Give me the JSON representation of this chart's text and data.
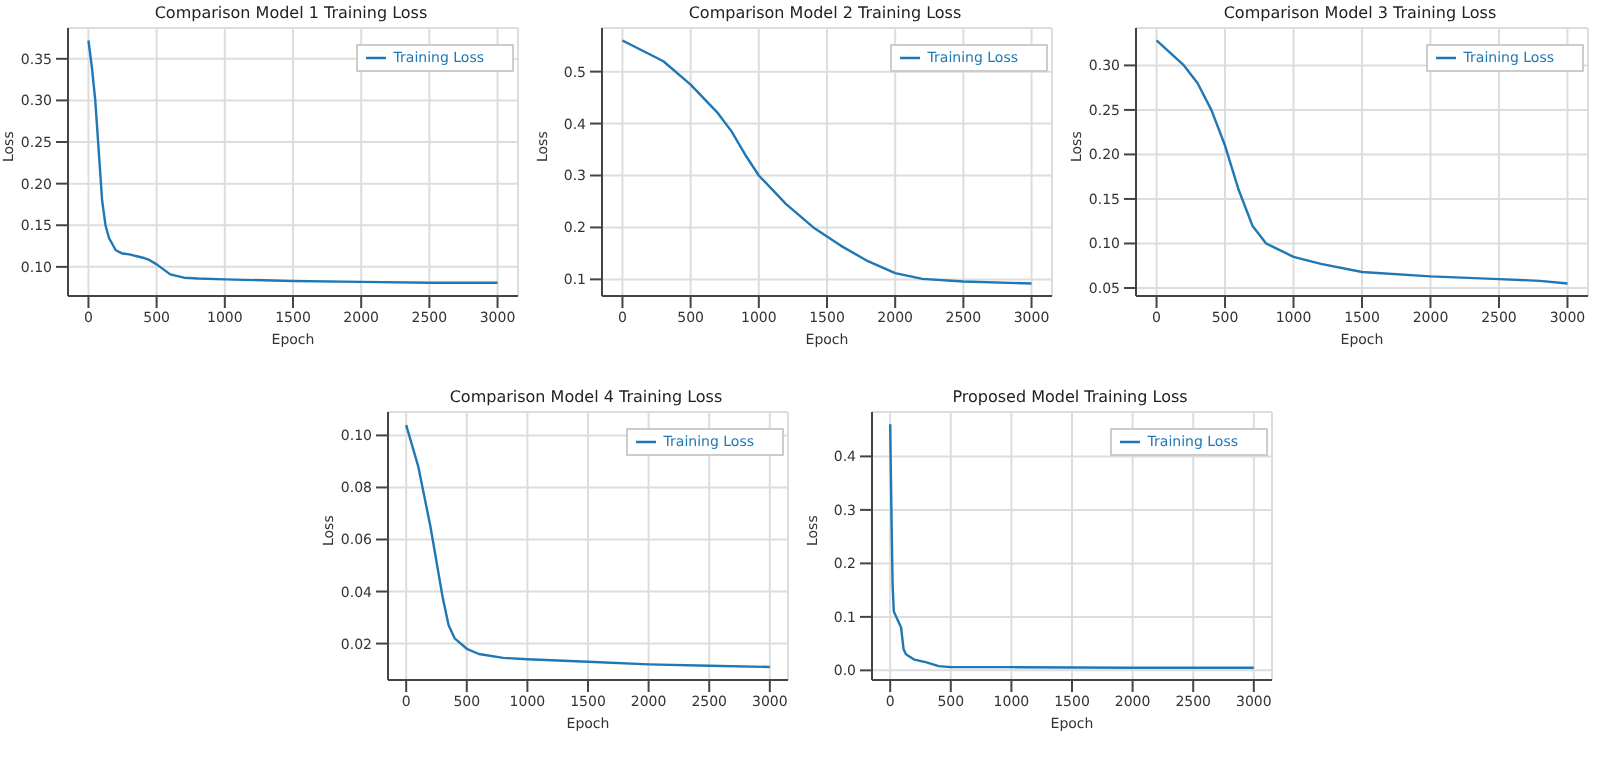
{
  "chart_data": [
    {
      "type": "line",
      "title": "Comparison Model 1 Training Loss",
      "xlabel": "Epoch",
      "ylabel": "Loss",
      "xlim": [
        -150,
        3150
      ],
      "ylim": [
        0.065,
        0.387
      ],
      "xticks": [
        0,
        500,
        1000,
        1500,
        2000,
        2500,
        3000
      ],
      "yticks": [
        {
          "value": 0.1,
          "label": "0.10"
        },
        0.15,
        {
          "value": 0.2,
          "label": "0.20"
        },
        0.25,
        {
          "value": 0.3,
          "label": "0.30"
        },
        0.35
      ],
      "grid": true,
      "legend": "top right",
      "marker": "none",
      "line_style": "solid",
      "series": [
        {
          "name": "Training Loss",
          "color": "#1f77b4",
          "x": [
            0,
            25,
            50,
            75,
            100,
            125,
            150,
            200,
            250,
            300,
            400,
            450,
            500,
            550,
            600,
            700,
            800,
            1000,
            1500,
            2000,
            2500,
            3000
          ],
          "values": [
            0.372,
            0.34,
            0.3,
            0.24,
            0.18,
            0.15,
            0.135,
            0.12,
            0.116,
            0.115,
            0.111,
            0.108,
            0.103,
            0.097,
            0.091,
            0.087,
            0.086,
            0.085,
            0.083,
            0.082,
            0.081,
            0.081
          ]
        }
      ]
    },
    {
      "type": "line",
      "title": "Comparison Model 2 Training Loss",
      "xlabel": "Epoch",
      "ylabel": "Loss",
      "xlim": [
        -150,
        3150
      ],
      "ylim": [
        0.068,
        0.584
      ],
      "xticks": [
        0,
        500,
        1000,
        1500,
        2000,
        2500,
        3000
      ],
      "yticks": [
        0.1,
        0.2,
        0.3,
        0.4,
        0.5
      ],
      "grid": true,
      "legend": "top right",
      "marker": "none",
      "line_style": "solid",
      "series": [
        {
          "name": "Training Loss",
          "color": "#1f77b4",
          "x": [
            0,
            300,
            500,
            700,
            800,
            900,
            1000,
            1200,
            1400,
            1600,
            1800,
            2000,
            2200,
            2500,
            3000
          ],
          "values": [
            0.56,
            0.52,
            0.475,
            0.42,
            0.385,
            0.34,
            0.3,
            0.245,
            0.2,
            0.165,
            0.135,
            0.112,
            0.101,
            0.096,
            0.092
          ]
        }
      ]
    },
    {
      "type": "line",
      "title": "Comparison Model 3 Training Loss",
      "xlabel": "Epoch",
      "ylabel": "Loss",
      "xlim": [
        -150,
        3150
      ],
      "ylim": [
        0.041,
        0.342
      ],
      "xticks": [
        0,
        500,
        1000,
        1500,
        2000,
        2500,
        3000
      ],
      "yticks": [
        0.05,
        {
          "value": 0.1,
          "label": "0.10"
        },
        0.15,
        {
          "value": 0.2,
          "label": "0.20"
        },
        0.25,
        {
          "value": 0.3,
          "label": "0.30"
        }
      ],
      "grid": true,
      "legend": "top right",
      "marker": "none",
      "line_style": "solid",
      "series": [
        {
          "name": "Training Loss",
          "color": "#1f77b4",
          "x": [
            0,
            200,
            300,
            400,
            500,
            600,
            700,
            800,
            1000,
            1200,
            1500,
            2000,
            2500,
            2800,
            3000
          ],
          "values": [
            0.328,
            0.3,
            0.28,
            0.25,
            0.21,
            0.16,
            0.12,
            0.1,
            0.085,
            0.077,
            0.068,
            0.063,
            0.06,
            0.058,
            0.055
          ]
        }
      ]
    },
    {
      "type": "line",
      "title": "Comparison Model 4 Training Loss",
      "xlabel": "Epoch",
      "ylabel": "Loss",
      "xlim": [
        -150,
        3150
      ],
      "ylim": [
        0.006,
        0.109
      ],
      "xticks": [
        0,
        500,
        1000,
        1500,
        2000,
        2500,
        3000
      ],
      "yticks": [
        0.02,
        0.04,
        0.06,
        0.08,
        {
          "value": 0.1,
          "label": "0.10"
        }
      ],
      "grid": true,
      "legend": "top right",
      "marker": "none",
      "line_style": "solid",
      "series": [
        {
          "name": "Training Loss",
          "color": "#1f77b4",
          "x": [
            0,
            100,
            200,
            300,
            350,
            400,
            500,
            600,
            800,
            1000,
            1500,
            2000,
            2500,
            3000
          ],
          "values": [
            0.104,
            0.088,
            0.065,
            0.038,
            0.027,
            0.022,
            0.018,
            0.016,
            0.0145,
            0.014,
            0.013,
            0.012,
            0.0115,
            0.011
          ]
        }
      ]
    },
    {
      "type": "line",
      "title": "Proposed Model Training Loss",
      "xlabel": "Epoch",
      "ylabel": "Loss",
      "xlim": [
        -150,
        3150
      ],
      "ylim": [
        -0.018,
        0.483
      ],
      "xticks": [
        0,
        500,
        1000,
        1500,
        2000,
        2500,
        3000
      ],
      "yticks": [
        {
          "value": 0,
          "label": "0.0"
        },
        0.1,
        0.2,
        0.3,
        0.4
      ],
      "grid": true,
      "legend": "top right",
      "marker": "none",
      "line_style": "solid",
      "series": [
        {
          "name": "Training Loss",
          "color": "#1f77b4",
          "x": [
            0,
            10,
            20,
            30,
            50,
            70,
            90,
            110,
            130,
            200,
            300,
            400,
            500,
            1000,
            2000,
            3000
          ],
          "values": [
            0.46,
            0.3,
            0.16,
            0.11,
            0.1,
            0.09,
            0.08,
            0.04,
            0.03,
            0.02,
            0.015,
            0.008,
            0.006,
            0.006,
            0.005,
            0.005
          ]
        }
      ]
    }
  ]
}
